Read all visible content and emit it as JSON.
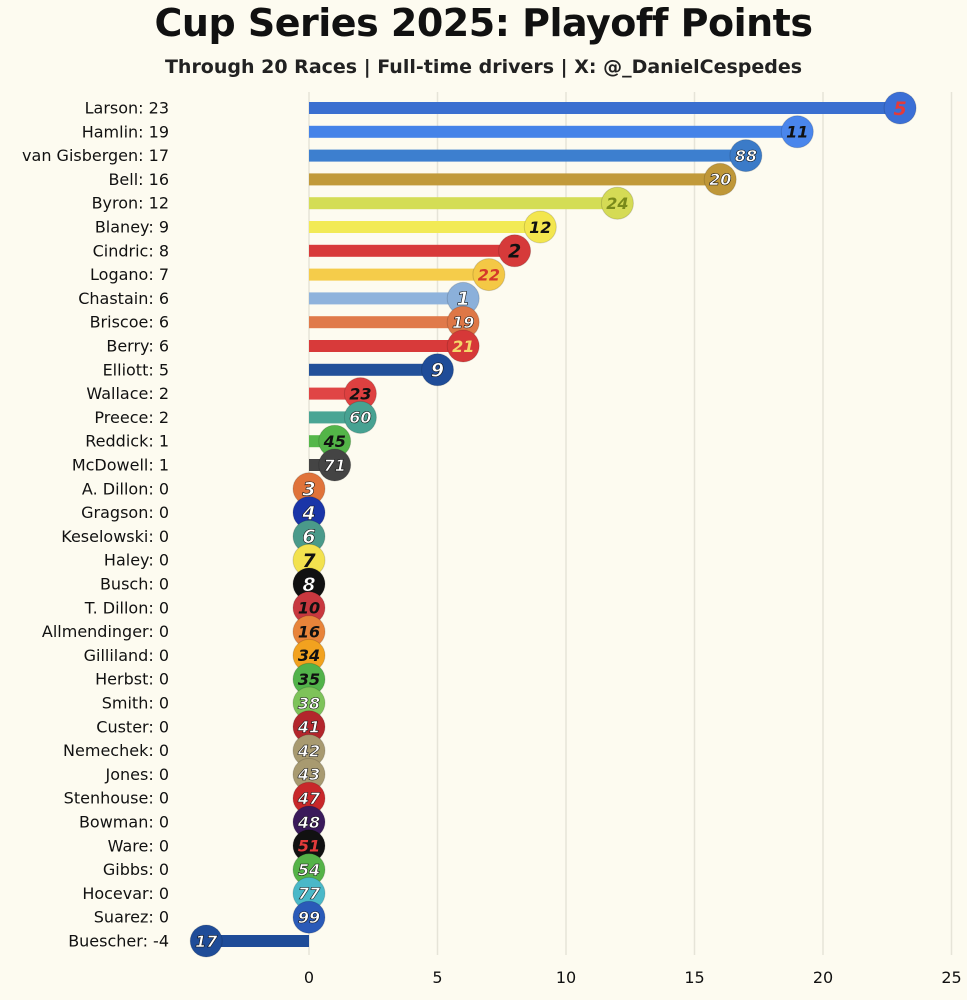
{
  "header": {
    "title": "Cup Series 2025: Playoff Points",
    "subtitle": "Through 20 Races | Full-time drivers | X: @_DanielCespedes"
  },
  "chart_data": {
    "type": "bar",
    "orientation": "horizontal",
    "title": "Cup Series 2025: Playoff Points",
    "subtitle": "Through 20 Races | Full-time drivers | X: @_DanielCespedes",
    "xlim": [
      -4.5,
      25
    ],
    "x_ticks": [
      0,
      5,
      10,
      15,
      20,
      25
    ],
    "grid": "vertical",
    "rows": [
      {
        "driver": "Larson",
        "label": "Larson: 23",
        "value": 23,
        "car": "5",
        "color": "#3a6fd0",
        "badge_bg": "#3b6fd6",
        "badge_text": "#e33b3b"
      },
      {
        "driver": "Hamlin",
        "label": "Hamlin: 19",
        "value": 19,
        "car": "11",
        "color": "#4583e8",
        "badge_bg": "#4a86ec",
        "badge_text": "#111111"
      },
      {
        "driver": "van Gisbergen",
        "label": "van Gisbergen: 17",
        "value": 17,
        "car": "88",
        "color": "#3d7fcf",
        "badge_bg": "#3b7bc8",
        "badge_text": "#ffffff"
      },
      {
        "driver": "Bell",
        "label": "Bell: 16",
        "value": 16,
        "car": "20",
        "color": "#c19a3a",
        "badge_bg": "#bf9738",
        "badge_text": "#ffffff"
      },
      {
        "driver": "Byron",
        "label": "Byron: 12",
        "value": 12,
        "car": "24",
        "color": "#d4dd55",
        "badge_bg": "#d5db55",
        "badge_text": "#7a8a1a"
      },
      {
        "driver": "Blaney",
        "label": "Blaney: 9",
        "value": 9,
        "car": "12",
        "color": "#f2ea55",
        "badge_bg": "#f3e64e",
        "badge_text": "#111111"
      },
      {
        "driver": "Cindric",
        "label": "Cindric: 8",
        "value": 8,
        "car": "2",
        "color": "#d83a3a",
        "badge_bg": "#d63a3a",
        "badge_text": "#111111"
      },
      {
        "driver": "Logano",
        "label": "Logano: 7",
        "value": 7,
        "car": "22",
        "color": "#f5cc4a",
        "badge_bg": "#f4c845",
        "badge_text": "#d43a2a"
      },
      {
        "driver": "Chastain",
        "label": "Chastain: 6",
        "value": 6,
        "car": "1",
        "color": "#8fb3dc",
        "badge_bg": "#8bb0da",
        "badge_text": "#ffffff"
      },
      {
        "driver": "Briscoe",
        "label": "Briscoe: 6",
        "value": 6,
        "car": "19",
        "color": "#e07a4a",
        "badge_bg": "#de7746",
        "badge_text": "#ffffff"
      },
      {
        "driver": "Berry",
        "label": "Berry: 6",
        "value": 6,
        "car": "21",
        "color": "#d83a3a",
        "badge_bg": "#d63838",
        "badge_text": "#f4d76a"
      },
      {
        "driver": "Elliott",
        "label": "Elliott: 5",
        "value": 5,
        "car": "9",
        "color": "#23519a",
        "badge_bg": "#1f4c98",
        "badge_text": "#ffffff"
      },
      {
        "driver": "Wallace",
        "label": "Wallace: 2",
        "value": 2,
        "car": "23",
        "color": "#e04545",
        "badge_bg": "#de4040",
        "badge_text": "#111111"
      },
      {
        "driver": "Preece",
        "label": "Preece: 2",
        "value": 2,
        "car": "60",
        "color": "#4aa594",
        "badge_bg": "#47a292",
        "badge_text": "#ffffff"
      },
      {
        "driver": "Reddick",
        "label": "Reddick: 1",
        "value": 1,
        "car": "45",
        "color": "#55b74a",
        "badge_bg": "#53b548",
        "badge_text": "#111111"
      },
      {
        "driver": "McDowell",
        "label": "McDowell: 1",
        "value": 1,
        "car": "71",
        "color": "#444444",
        "badge_bg": "#444444",
        "badge_text": "#ffffff"
      },
      {
        "driver": "A. Dillon",
        "label": "A. Dillon: 0",
        "value": 0,
        "car": "3",
        "color": "#e0733a",
        "badge_bg": "#e0733a",
        "badge_text": "#ffffff"
      },
      {
        "driver": "Gragson",
        "label": "Gragson: 0",
        "value": 0,
        "car": "4",
        "color": "#1a35a8",
        "badge_bg": "#1a35a8",
        "badge_text": "#ffffff"
      },
      {
        "driver": "Keselowski",
        "label": "Keselowski: 0",
        "value": 0,
        "car": "6",
        "color": "#4a9a8a",
        "badge_bg": "#4a9a8a",
        "badge_text": "#ffffff"
      },
      {
        "driver": "Haley",
        "label": "Haley: 0",
        "value": 0,
        "car": "7",
        "color": "#f3e24e",
        "badge_bg": "#f3e24e",
        "badge_text": "#111111"
      },
      {
        "driver": "Busch",
        "label": "Busch: 0",
        "value": 0,
        "car": "8",
        "color": "#111111",
        "badge_bg": "#111111",
        "badge_text": "#ffffff"
      },
      {
        "driver": "T. Dillon",
        "label": "T. Dillon: 0",
        "value": 0,
        "car": "10",
        "color": "#c8383f",
        "badge_bg": "#c8383f",
        "badge_text": "#111111"
      },
      {
        "driver": "Allmendinger",
        "label": "Allmendinger: 0",
        "value": 0,
        "car": "16",
        "color": "#e8843a",
        "badge_bg": "#e8843a",
        "badge_text": "#111111"
      },
      {
        "driver": "Gilliland",
        "label": "Gilliland: 0",
        "value": 0,
        "car": "34",
        "color": "#f2a21f",
        "badge_bg": "#f2a21f",
        "badge_text": "#111111"
      },
      {
        "driver": "Herbst",
        "label": "Herbst: 0",
        "value": 0,
        "car": "35",
        "color": "#52b34a",
        "badge_bg": "#52b34a",
        "badge_text": "#111111"
      },
      {
        "driver": "Smith",
        "label": "Smith: 0",
        "value": 0,
        "car": "38",
        "color": "#7ec35a",
        "badge_bg": "#7ec35a",
        "badge_text": "#ffffff"
      },
      {
        "driver": "Custer",
        "label": "Custer: 0",
        "value": 0,
        "car": "41",
        "color": "#b3262c",
        "badge_bg": "#b3262c",
        "badge_text": "#ffffff"
      },
      {
        "driver": "Nemechek",
        "label": "Nemechek: 0",
        "value": 0,
        "car": "42",
        "color": "#a89a70",
        "badge_bg": "#a89a70",
        "badge_text": "#ffffff"
      },
      {
        "driver": "Jones",
        "label": "Jones: 0",
        "value": 0,
        "car": "43",
        "color": "#a89a70",
        "badge_bg": "#a89a70",
        "badge_text": "#ffffff"
      },
      {
        "driver": "Stenhouse",
        "label": "Stenhouse: 0",
        "value": 0,
        "car": "47",
        "color": "#c8282a",
        "badge_bg": "#c8282a",
        "badge_text": "#ffffff"
      },
      {
        "driver": "Bowman",
        "label": "Bowman: 0",
        "value": 0,
        "car": "48",
        "color": "#3a1a5a",
        "badge_bg": "#3a1a5a",
        "badge_text": "#ffffff"
      },
      {
        "driver": "Ware",
        "label": "Ware: 0",
        "value": 0,
        "car": "51",
        "color": "#111111",
        "badge_bg": "#111111",
        "badge_text": "#e33b3b"
      },
      {
        "driver": "Gibbs",
        "label": "Gibbs: 0",
        "value": 0,
        "car": "54",
        "color": "#55b348",
        "badge_bg": "#55b348",
        "badge_text": "#ffffff"
      },
      {
        "driver": "Hocevar",
        "label": "Hocevar: 0",
        "value": 0,
        "car": "77",
        "color": "#4ab8c8",
        "badge_bg": "#4ab8c8",
        "badge_text": "#ffffff"
      },
      {
        "driver": "Suarez",
        "label": "Suarez: 0",
        "value": 0,
        "car": "99",
        "color": "#2a5ab8",
        "badge_bg": "#2a5ab8",
        "badge_text": "#ffffff"
      },
      {
        "driver": "Buescher",
        "label": "Buescher: -4",
        "value": -4,
        "car": "17",
        "color": "#1f4c98",
        "badge_bg": "#1f4c98",
        "badge_text": "#ffffff"
      }
    ]
  }
}
